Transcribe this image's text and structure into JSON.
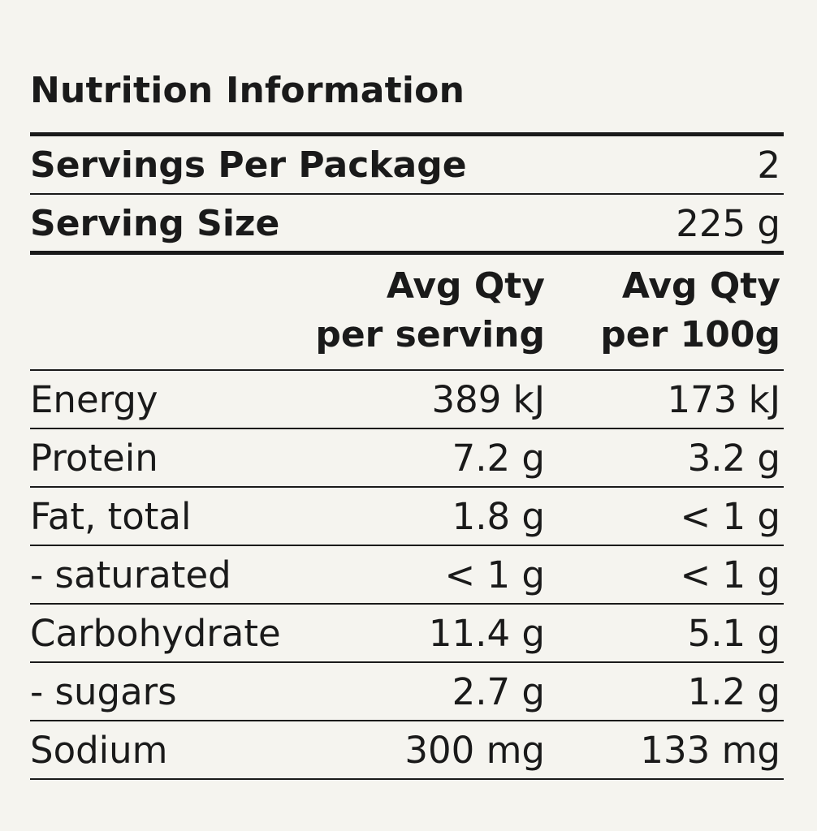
{
  "title": "Nutrition Information",
  "servings": {
    "label": "Servings Per Package",
    "value": "2"
  },
  "serving_size": {
    "label": "Serving Size",
    "value": "225 g"
  },
  "headers": {
    "per_serving": [
      "Avg Qty",
      "per serving"
    ],
    "per_100g": [
      "Avg Qty",
      "per 100g"
    ]
  },
  "rows": [
    {
      "label": "Energy",
      "per_serving": "389 kJ",
      "per_100g": "173 kJ"
    },
    {
      "label": "Protein",
      "per_serving": "7.2 g",
      "per_100g": "3.2 g"
    },
    {
      "label": "Fat, total",
      "per_serving": "1.8 g",
      "per_100g": "< 1 g"
    },
    {
      "label": "- saturated",
      "per_serving": "< 1 g",
      "per_100g": "< 1 g"
    },
    {
      "label": "Carbohydrate",
      "per_serving": "11.4 g",
      "per_100g": "5.1 g"
    },
    {
      "label": "- sugars",
      "per_serving": "2.7 g",
      "per_100g": "1.2 g"
    },
    {
      "label": "Sodium",
      "per_serving": "300 mg",
      "per_100g": "133 mg"
    }
  ]
}
